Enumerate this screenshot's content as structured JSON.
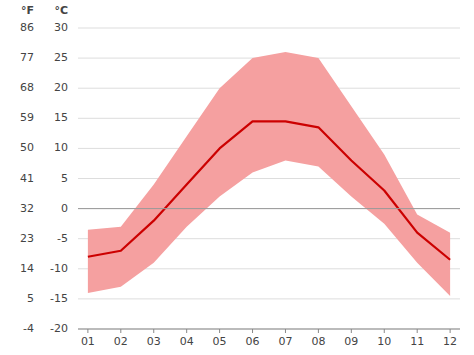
{
  "chart_data": {
    "type": "line",
    "x": [
      1,
      2,
      3,
      4,
      5,
      6,
      7,
      8,
      9,
      10,
      11,
      12
    ],
    "xlim": [
      0.7,
      12.3
    ],
    "xticks": [
      {
        "value": 1,
        "label": "01"
      },
      {
        "value": 2,
        "label": "02"
      },
      {
        "value": 3,
        "label": "03"
      },
      {
        "value": 4,
        "label": "04"
      },
      {
        "value": 5,
        "label": "05"
      },
      {
        "value": 6,
        "label": "06"
      },
      {
        "value": 7,
        "label": "07"
      },
      {
        "value": 8,
        "label": "08"
      },
      {
        "value": 9,
        "label": "09"
      },
      {
        "value": 10,
        "label": "10"
      },
      {
        "value": 11,
        "label": "11"
      },
      {
        "value": 12,
        "label": "12"
      }
    ],
    "series": [
      {
        "type": "range",
        "color": "#f5a0a0",
        "values": [
          -3.5,
          -3.0,
          4.0,
          12.0,
          20.0,
          25.0,
          26.0,
          25.0,
          17.0,
          9.0,
          -1.0,
          -4.0
        ],
        "low": [
          -14.0,
          -13.0,
          -9.0,
          -3.0,
          2.0,
          6.0,
          8.0,
          7.0,
          2.0,
          -2.5,
          -9.0,
          -14.5
        ]
      },
      {
        "type": "line",
        "color": "#cc0000",
        "values": [
          -8.0,
          -7.0,
          -2.0,
          4.0,
          10.0,
          14.5,
          14.5,
          13.5,
          8.0,
          3.0,
          -4.0,
          -8.5
        ]
      }
    ],
    "y_label": "°C",
    "ylim": [
      -20,
      30
    ],
    "yticks": [
      -20,
      -15,
      -10,
      -5,
      0,
      5,
      10,
      15,
      20,
      25,
      30
    ],
    "y2_label": "°F",
    "y2lim": [
      -4,
      86
    ],
    "y2ticks": [
      -4,
      5,
      14,
      23,
      32,
      41,
      50,
      59,
      68,
      77,
      86
    ],
    "grid": true
  }
}
